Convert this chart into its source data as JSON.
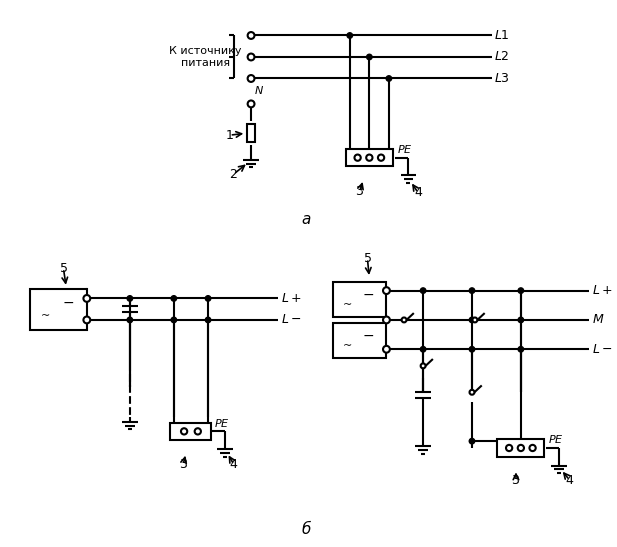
{
  "bg": "#ffffff",
  "lc": "#000000",
  "lw": 1.5,
  "fw": 6.17,
  "fh": 5.47,
  "label_a": "а",
  "label_b": "б",
  "k_text": "К источнику\nпитания"
}
